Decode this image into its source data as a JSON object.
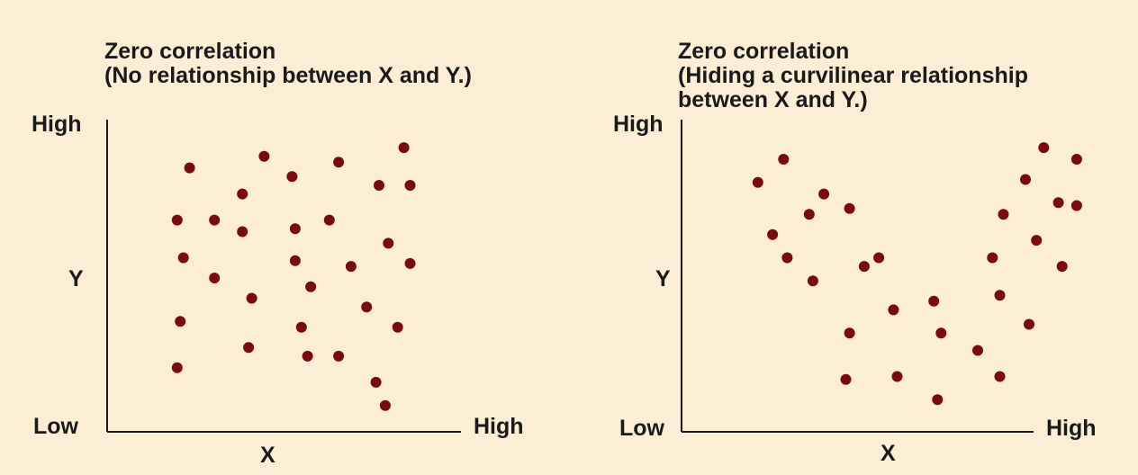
{
  "colors": {
    "background": "#fbeed4",
    "point": "#7a0a0f",
    "axis": "#1a1a1a"
  },
  "chart_data": [
    {
      "type": "scatter",
      "title_lines": [
        "Zero correlation",
        "(No relationship between X and Y.)"
      ],
      "xlabel": "X",
      "ylabel": "Y",
      "x_low": "Low",
      "x_high": "High",
      "y_high": "High",
      "xlim": [
        0,
        100
      ],
      "ylim": [
        0,
        100
      ],
      "points": [
        {
          "x": 15,
          "y": 70
        },
        {
          "x": 19,
          "y": 88
        },
        {
          "x": 17,
          "y": 57
        },
        {
          "x": 16,
          "y": 35
        },
        {
          "x": 15,
          "y": 19
        },
        {
          "x": 27,
          "y": 70
        },
        {
          "x": 27,
          "y": 50
        },
        {
          "x": 36,
          "y": 79
        },
        {
          "x": 36,
          "y": 66
        },
        {
          "x": 39,
          "y": 43
        },
        {
          "x": 38,
          "y": 26
        },
        {
          "x": 43,
          "y": 92
        },
        {
          "x": 52,
          "y": 85
        },
        {
          "x": 53,
          "y": 67
        },
        {
          "x": 53,
          "y": 56
        },
        {
          "x": 58,
          "y": 47
        },
        {
          "x": 55,
          "y": 33
        },
        {
          "x": 57,
          "y": 23
        },
        {
          "x": 64,
          "y": 70
        },
        {
          "x": 67,
          "y": 90
        },
        {
          "x": 67,
          "y": 23
        },
        {
          "x": 71,
          "y": 54
        },
        {
          "x": 76,
          "y": 40
        },
        {
          "x": 79,
          "y": 14
        },
        {
          "x": 80,
          "y": 82
        },
        {
          "x": 82,
          "y": 6
        },
        {
          "x": 83,
          "y": 62
        },
        {
          "x": 86,
          "y": 33
        },
        {
          "x": 88,
          "y": 95
        },
        {
          "x": 90,
          "y": 82
        },
        {
          "x": 90,
          "y": 55
        }
      ]
    },
    {
      "type": "scatter",
      "title_lines": [
        "Zero correlation",
        "(Hiding a curvilinear relationship",
        "between X and Y.)"
      ],
      "xlabel": "X",
      "ylabel": "Y",
      "x_low": "Low",
      "x_high": "High",
      "y_high": "High",
      "xlim": [
        0,
        100
      ],
      "ylim": [
        0,
        100
      ],
      "points": [
        {
          "x": 12,
          "y": 83
        },
        {
          "x": 19,
          "y": 91
        },
        {
          "x": 16,
          "y": 65
        },
        {
          "x": 20,
          "y": 57
        },
        {
          "x": 26,
          "y": 72
        },
        {
          "x": 30,
          "y": 79
        },
        {
          "x": 27,
          "y": 49
        },
        {
          "x": 37,
          "y": 74
        },
        {
          "x": 41,
          "y": 54
        },
        {
          "x": 45,
          "y": 57
        },
        {
          "x": 37,
          "y": 31
        },
        {
          "x": 36,
          "y": 15
        },
        {
          "x": 49,
          "y": 39
        },
        {
          "x": 50,
          "y": 16
        },
        {
          "x": 60,
          "y": 42
        },
        {
          "x": 62,
          "y": 31
        },
        {
          "x": 61,
          "y": 8
        },
        {
          "x": 72,
          "y": 25
        },
        {
          "x": 76,
          "y": 57
        },
        {
          "x": 79,
          "y": 72
        },
        {
          "x": 78,
          "y": 44
        },
        {
          "x": 78,
          "y": 16
        },
        {
          "x": 86,
          "y": 34
        },
        {
          "x": 85,
          "y": 84
        },
        {
          "x": 88,
          "y": 63
        },
        {
          "x": 90,
          "y": 95
        },
        {
          "x": 94,
          "y": 76
        },
        {
          "x": 95,
          "y": 54
        },
        {
          "x": 99,
          "y": 75
        },
        {
          "x": 99,
          "y": 91
        }
      ]
    }
  ]
}
